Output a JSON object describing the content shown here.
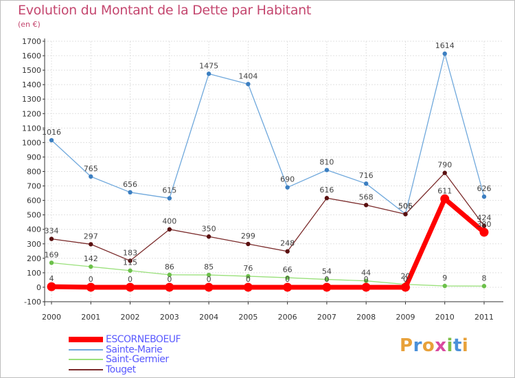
{
  "header": {
    "title": "Evolution du Montant de la Dette par Habitant",
    "unit": "(en €)"
  },
  "logo": {
    "text": "Proxiti",
    "letters": [
      "P",
      "r",
      "o",
      "x",
      "i",
      "t",
      "i"
    ],
    "colors": [
      "#e8a13a",
      "#4a90d9",
      "#e8a13a",
      "#d94aa0",
      "#7fc04a",
      "#4a90d9",
      "#e8a13a"
    ]
  },
  "chart_data": {
    "type": "line",
    "title": "Evolution du Montant de la Dette par Habitant",
    "ylabel": "(en €)",
    "xlabel": "",
    "x": [
      "2000",
      "2001",
      "2002",
      "2003",
      "2004",
      "2005",
      "2006",
      "2007",
      "2008",
      "2009",
      "2010",
      "2011"
    ],
    "ylim": [
      -100,
      1700
    ],
    "yticks": [
      -100,
      0,
      100,
      200,
      300,
      400,
      500,
      600,
      700,
      800,
      900,
      1000,
      1100,
      1200,
      1300,
      1400,
      1500,
      1600,
      1700
    ],
    "grid": true,
    "legend_position": "bottom-left",
    "series": [
      {
        "name": "ESCORNEBOEUF",
        "color": "#ff0000",
        "values": [
          4,
          0,
          0,
          0,
          0,
          0,
          0,
          0,
          0,
          0,
          611,
          380
        ],
        "labels": [
          "4",
          "0",
          "0",
          "0",
          "0",
          "0",
          "0",
          "0",
          "0",
          "0",
          "611",
          "380"
        ]
      },
      {
        "name": "Sainte-Marie",
        "color": "#6fa8dc",
        "marker": "#3c7fc1",
        "values": [
          1016,
          765,
          656,
          615,
          1475,
          1404,
          690,
          810,
          716,
          506,
          1614,
          626
        ],
        "labels": [
          "1016",
          "765",
          "656",
          "615",
          "1475",
          "1404",
          "690",
          "810",
          "716",
          "506",
          "1614",
          "626"
        ]
      },
      {
        "name": "Saint-Germier",
        "color": "#99e07a",
        "marker": "#6cc04a",
        "values": [
          169,
          142,
          115,
          86,
          85,
          76,
          66,
          54,
          44,
          20,
          9,
          8
        ],
        "labels": [
          "169",
          "142",
          "115",
          "86",
          "85",
          "76",
          "66",
          "54",
          "44",
          "20",
          "9",
          "8"
        ]
      },
      {
        "name": "Touget",
        "color": "#7a2a2a",
        "marker": "#5a1010",
        "values": [
          334,
          297,
          183,
          400,
          350,
          299,
          248,
          616,
          568,
          505,
          790,
          424
        ],
        "labels": [
          "334",
          "297",
          "183",
          "400",
          "350",
          "299",
          "248",
          "616",
          "568",
          "505",
          "790",
          "424"
        ]
      }
    ]
  }
}
